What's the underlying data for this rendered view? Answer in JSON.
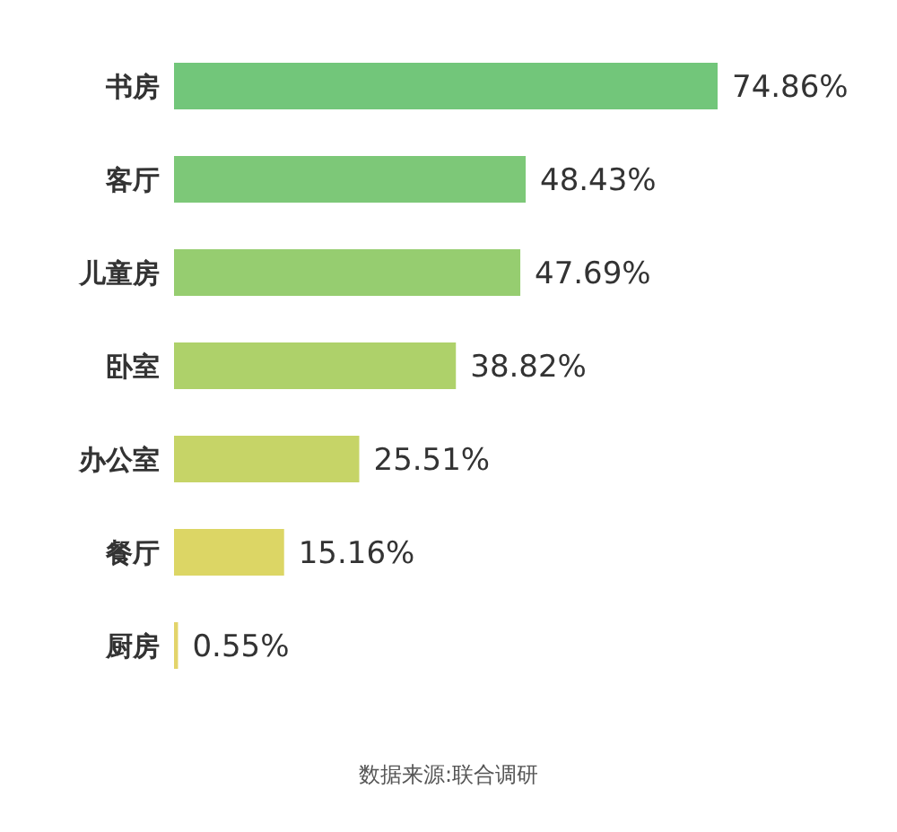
{
  "chart_data": {
    "type": "bar",
    "orientation": "horizontal",
    "categories": [
      "书房",
      "客厅",
      "儿童房",
      "卧室",
      "办公室",
      "餐厅",
      "厨房"
    ],
    "values": [
      74.86,
      48.43,
      47.69,
      38.82,
      25.51,
      15.16,
      0.55
    ],
    "colors": [
      "#72c67a",
      "#7dc878",
      "#96cd70",
      "#aed16a",
      "#c6d467",
      "#dcd665",
      "#e3d46a"
    ],
    "value_labels": [
      "74.86%",
      "48.43%",
      "47.69%",
      "38.82%",
      "25.51%",
      "15.16%",
      "0.55%"
    ],
    "annotations": [
      "数据来源:联合调研"
    ],
    "grid": false,
    "legend": false
  }
}
